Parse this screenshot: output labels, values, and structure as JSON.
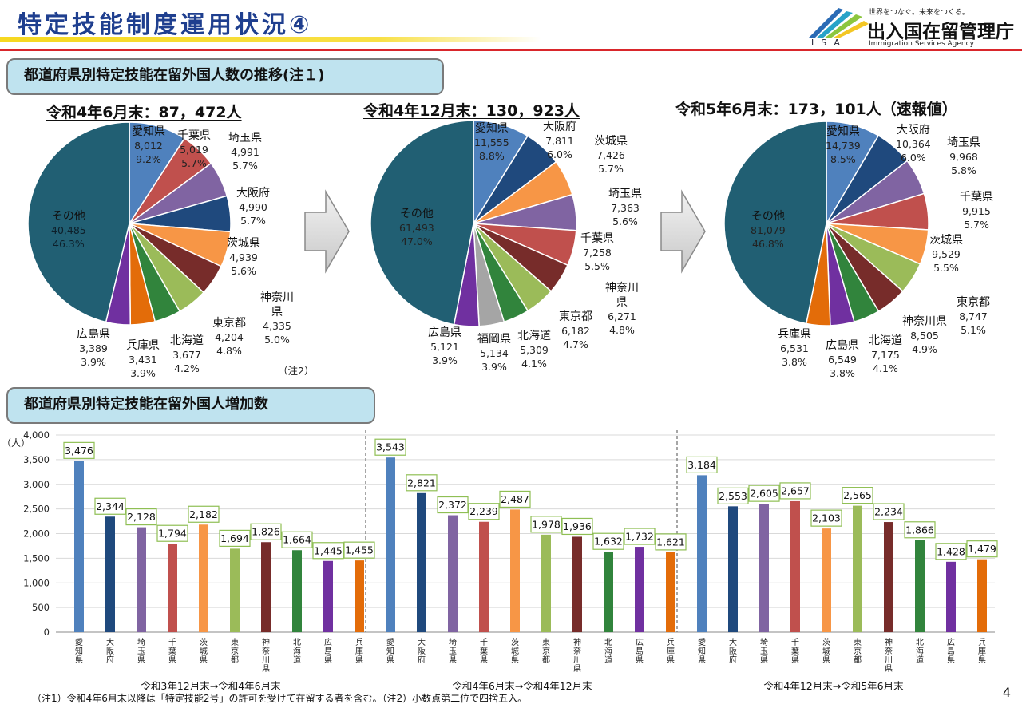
{
  "header": {
    "title": "特定技能制度運用状況④",
    "logo_tagline": "世界をつなぐ。未来をつくる。",
    "logo_name": "出入国在留管理庁",
    "logo_english": "Immigration Services Agency",
    "logo_abbr": "ISA"
  },
  "sections": {
    "trend_title": "都道府県別特定技能在留外国人数の推移(注１)",
    "increase_title": "都道府県別特定技能在留外国人増加数"
  },
  "colors": {
    "title_blue": "#1f3f8f",
    "accent_red": "#d9262b",
    "section_bg": "#bfe3ef",
    "aichi": "#4f81bd",
    "chiba": "#c0504d",
    "saitama": "#8064a2",
    "osaka": "#1f497d",
    "ibaraki": "#f79646",
    "kanagawa": "#772c2a",
    "tokyo": "#9bbb59",
    "hokkaido": "#31843c",
    "hyogo": "#e36c09",
    "hiroshima": "#7030a0",
    "fukuoka": "#a5a5a5",
    "other": "#215f73"
  },
  "chart_data": [
    {
      "type": "pie",
      "title": "令和4年6月末：87，472人",
      "slices": [
        {
          "name": "愛知県",
          "value": 8012,
          "percent": "9.2%",
          "color": "#4f81bd"
        },
        {
          "name": "千葉県",
          "value": 5019,
          "percent": "5.7%",
          "color": "#c0504d"
        },
        {
          "name": "埼玉県",
          "value": 4991,
          "percent": "5.7%",
          "color": "#8064a2"
        },
        {
          "name": "大阪府",
          "value": 4990,
          "percent": "5.7%",
          "color": "#1f497d"
        },
        {
          "name": "茨城県",
          "value": 4939,
          "percent": "5.6%",
          "color": "#f79646"
        },
        {
          "name": "神奈川県",
          "value": 4335,
          "percent": "5.0%",
          "color": "#772c2a"
        },
        {
          "name": "東京都",
          "value": 4204,
          "percent": "4.8%",
          "color": "#9bbb59"
        },
        {
          "name": "北海道",
          "value": 3677,
          "percent": "4.2%",
          "color": "#31843c"
        },
        {
          "name": "兵庫県",
          "value": 3431,
          "percent": "3.9%",
          "color": "#e36c09"
        },
        {
          "name": "広島県",
          "value": 3389,
          "percent": "3.9%",
          "color": "#7030a0"
        },
        {
          "name": "その他",
          "value": 40485,
          "percent": "46.3%",
          "color": "#215f73"
        }
      ],
      "note": "（注2）"
    },
    {
      "type": "pie",
      "title": "令和4年12月末：130，923人",
      "slices": [
        {
          "name": "愛知県",
          "value": 11555,
          "percent": "8.8%",
          "color": "#4f81bd"
        },
        {
          "name": "大阪府",
          "value": 7811,
          "percent": "6.0%",
          "color": "#1f497d"
        },
        {
          "name": "茨城県",
          "value": 7426,
          "percent": "5.7%",
          "color": "#f79646"
        },
        {
          "name": "埼玉県",
          "value": 7363,
          "percent": "5.6%",
          "color": "#8064a2"
        },
        {
          "name": "千葉県",
          "value": 7258,
          "percent": "5.5%",
          "color": "#c0504d"
        },
        {
          "name": "神奈川県",
          "value": 6271,
          "percent": "4.8%",
          "color": "#772c2a"
        },
        {
          "name": "東京都",
          "value": 6182,
          "percent": "4.7%",
          "color": "#9bbb59"
        },
        {
          "name": "北海道",
          "value": 5309,
          "percent": "4.1%",
          "color": "#31843c"
        },
        {
          "name": "福岡県",
          "value": 5134,
          "percent": "3.9%",
          "color": "#a5a5a5"
        },
        {
          "name": "広島県",
          "value": 5121,
          "percent": "3.9%",
          "color": "#7030a0"
        },
        {
          "name": "その他",
          "value": 61493,
          "percent": "47.0%",
          "color": "#215f73"
        }
      ]
    },
    {
      "type": "pie",
      "title": "令和5年6月末：173，101人（速報値）",
      "slices": [
        {
          "name": "愛知県",
          "value": 14739,
          "percent": "8.5%",
          "color": "#4f81bd"
        },
        {
          "name": "大阪府",
          "value": 10364,
          "percent": "6.0%",
          "color": "#1f497d"
        },
        {
          "name": "埼玉県",
          "value": 9968,
          "percent": "5.8%",
          "color": "#8064a2"
        },
        {
          "name": "千葉県",
          "value": 9915,
          "percent": "5.7%",
          "color": "#c0504d"
        },
        {
          "name": "茨城県",
          "value": 9529,
          "percent": "5.5%",
          "color": "#f79646"
        },
        {
          "name": "東京都",
          "value": 8747,
          "percent": "5.1%",
          "color": "#9bbb59"
        },
        {
          "name": "神奈川県",
          "value": 8505,
          "percent": "4.9%",
          "color": "#772c2a"
        },
        {
          "name": "北海道",
          "value": 7175,
          "percent": "4.1%",
          "color": "#31843c"
        },
        {
          "name": "広島県",
          "value": 6549,
          "percent": "3.8%",
          "color": "#7030a0"
        },
        {
          "name": "兵庫県",
          "value": 6531,
          "percent": "3.8%",
          "color": "#e36c09"
        },
        {
          "name": "その他",
          "value": 81079,
          "percent": "46.8%",
          "color": "#215f73"
        }
      ]
    },
    {
      "type": "bar",
      "ylabel": "（人）",
      "ylim": [
        0,
        4000
      ],
      "yticks": [
        "0",
        "500",
        "1,000",
        "1,500",
        "2,000",
        "2,500",
        "3,000",
        "3,500",
        "4,000"
      ],
      "grid": true,
      "groups": [
        {
          "label": "令和3年12月末→令和4年6月末",
          "bars": [
            {
              "name": "愛知県",
              "value": 3476,
              "color": "#4f81bd"
            },
            {
              "name": "大阪府",
              "value": 2344,
              "color": "#1f497d"
            },
            {
              "name": "埼玉県",
              "value": 2128,
              "color": "#8064a2"
            },
            {
              "name": "千葉県",
              "value": 1794,
              "color": "#c0504d"
            },
            {
              "name": "茨城県",
              "value": 2182,
              "color": "#f79646"
            },
            {
              "name": "東京都",
              "value": 1694,
              "color": "#9bbb59"
            },
            {
              "name": "神奈川県",
              "value": 1826,
              "color": "#772c2a"
            },
            {
              "name": "北海道",
              "value": 1664,
              "color": "#31843c"
            },
            {
              "name": "広島県",
              "value": 1445,
              "color": "#7030a0"
            },
            {
              "name": "兵庫県",
              "value": 1455,
              "color": "#e36c09"
            }
          ]
        },
        {
          "label": "令和4年6月末→令和4年12月末",
          "bars": [
            {
              "name": "愛知県",
              "value": 3543,
              "color": "#4f81bd"
            },
            {
              "name": "大阪府",
              "value": 2821,
              "color": "#1f497d"
            },
            {
              "name": "埼玉県",
              "value": 2372,
              "color": "#8064a2"
            },
            {
              "name": "千葉県",
              "value": 2239,
              "color": "#c0504d"
            },
            {
              "name": "茨城県",
              "value": 2487,
              "color": "#f79646"
            },
            {
              "name": "東京都",
              "value": 1978,
              "color": "#9bbb59"
            },
            {
              "name": "神奈川県",
              "value": 1936,
              "color": "#772c2a"
            },
            {
              "name": "北海道",
              "value": 1632,
              "color": "#31843c"
            },
            {
              "name": "広島県",
              "value": 1732,
              "color": "#7030a0"
            },
            {
              "name": "兵庫県",
              "value": 1621,
              "color": "#e36c09"
            }
          ]
        },
        {
          "label": "令和4年12月末→令和5年6月末",
          "bars": [
            {
              "name": "愛知県",
              "value": 3184,
              "color": "#4f81bd"
            },
            {
              "name": "大阪府",
              "value": 2553,
              "color": "#1f497d"
            },
            {
              "name": "埼玉県",
              "value": 2605,
              "color": "#8064a2"
            },
            {
              "name": "千葉県",
              "value": 2657,
              "color": "#c0504d"
            },
            {
              "name": "茨城県",
              "value": 2103,
              "color": "#f79646"
            },
            {
              "name": "東京都",
              "value": 2565,
              "color": "#9bbb59"
            },
            {
              "name": "神奈川県",
              "value": 2234,
              "color": "#772c2a"
            },
            {
              "name": "北海道",
              "value": 1866,
              "color": "#31843c"
            },
            {
              "name": "広島県",
              "value": 1428,
              "color": "#7030a0"
            },
            {
              "name": "兵庫県",
              "value": 1479,
              "color": "#e36c09"
            }
          ]
        }
      ]
    }
  ],
  "footnote": "（注1）令和4年6月末以降は「特定技能2号」の許可を受けて在留する者を含む。（注2）小数点第二位で四捨五入。",
  "page_number": "4"
}
